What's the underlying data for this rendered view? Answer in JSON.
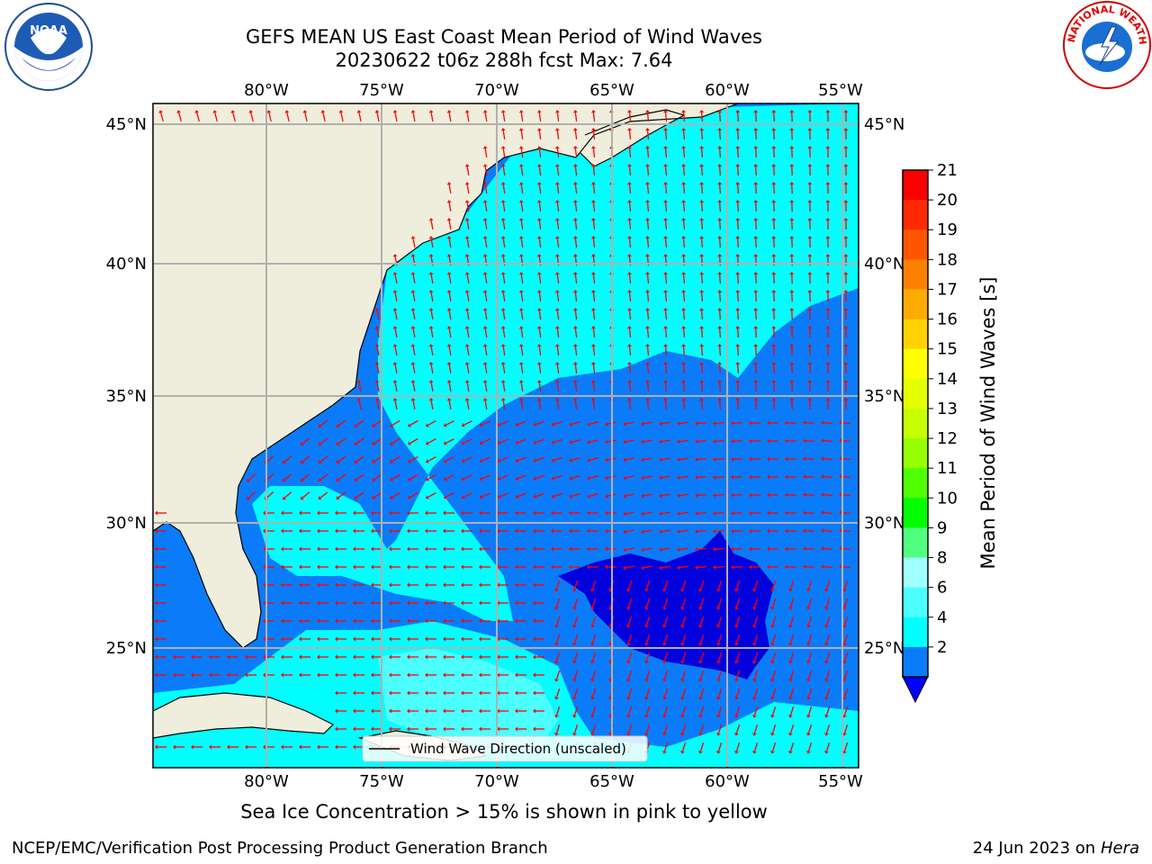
{
  "title_line1": "GEFS MEAN US East Coast Mean Period of Wind Waves",
  "title_line2": "20230622 t06z 288h fcst   Max: 7.64",
  "logos": {
    "left": "NOAA",
    "right": "NATIONAL WEATHER SERVICE"
  },
  "map": {
    "lon_labels": [
      "80°W",
      "75°W",
      "70°W",
      "65°W",
      "60°W",
      "55°W"
    ],
    "lat_labels": [
      "45°N",
      "40°N",
      "35°N",
      "30°N",
      "25°N"
    ],
    "legend_label": "Wind Wave Direction (unscaled)",
    "colors": {
      "land": "#efeedc",
      "band_2_4": "#0a7cfa",
      "band_4_6": "#00ffff",
      "band_6_8": "#4cffff",
      "band_lt2": "#0000dd",
      "arrow": "#ff0000"
    }
  },
  "colorbar": {
    "label": "Mean Period of Wind Waves [s]",
    "ticks": [
      "21",
      "20",
      "19",
      "18",
      "17",
      "16",
      "15",
      "14",
      "13",
      "12",
      "11",
      "10",
      "9",
      "8",
      "6",
      "4",
      "2"
    ],
    "colors": [
      "#ff0000",
      "#ff2a00",
      "#ff5500",
      "#ff8000",
      "#ffaa00",
      "#ffd200",
      "#ffff00",
      "#e6ff00",
      "#c8ff00",
      "#96ff00",
      "#50ff00",
      "#00ff00",
      "#50ff80",
      "#a0ffff",
      "#4cffff",
      "#00ffff",
      "#0a7cfa"
    ],
    "under_color": "#0000ff"
  },
  "ice_note": "Sea Ice Concentration > 15% is shown in pink to yellow",
  "footer_left": "NCEP/EMC/Verification Post Processing Product Generation Branch",
  "footer_date": "24 Jun 2023 on",
  "footer_machine": "Hera"
}
